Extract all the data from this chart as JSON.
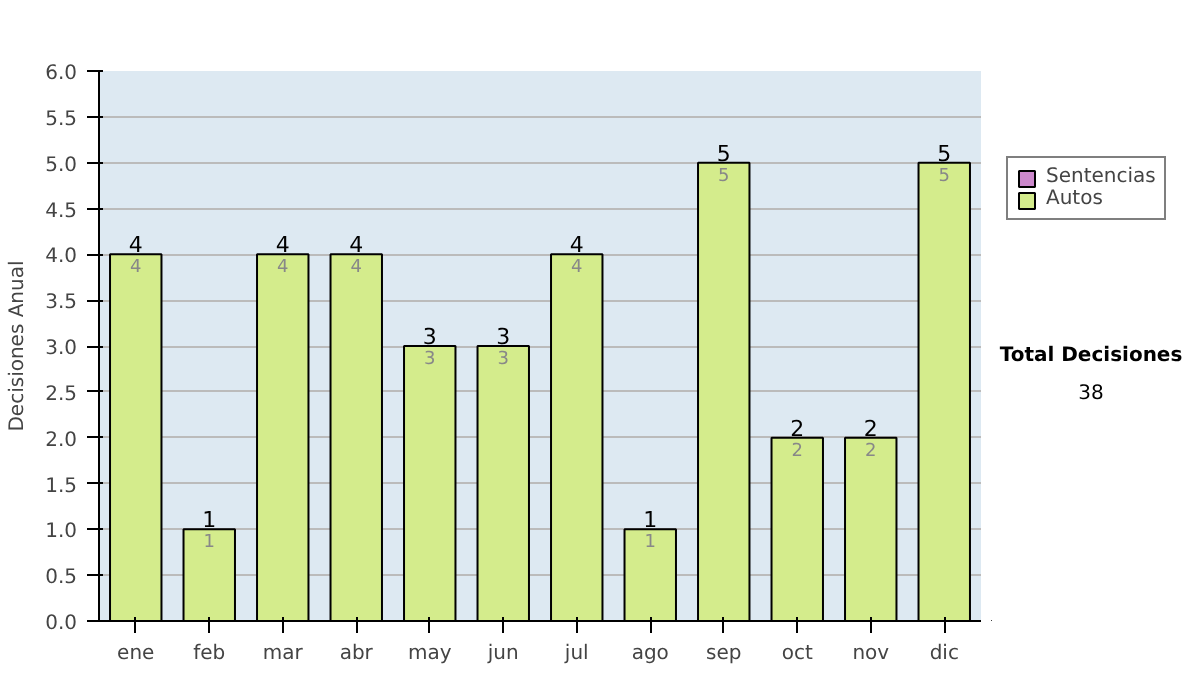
{
  "chart_data": {
    "type": "bar",
    "stacked": true,
    "ylabel": "Decisiones Anual",
    "categories": [
      "ene",
      "feb",
      "mar",
      "abr",
      "may",
      "jun",
      "jul",
      "ago",
      "sep",
      "oct",
      "nov",
      "dic"
    ],
    "series": [
      {
        "name": "Sentencias",
        "color": "#cc88cc",
        "values": [
          0,
          0,
          0,
          0,
          0,
          0,
          0,
          0,
          0,
          0,
          0,
          0
        ]
      },
      {
        "name": "Autos",
        "color": "#d4ec8c",
        "values": [
          4,
          1,
          4,
          4,
          3,
          3,
          4,
          1,
          5,
          2,
          2,
          5
        ],
        "value_labels": [
          "4",
          "1",
          "4",
          "4",
          "3",
          "3",
          "4",
          "1",
          "5",
          "2",
          "2",
          "5"
        ]
      }
    ],
    "ylim": [
      0,
      6
    ],
    "yticks": [
      {
        "value": 0,
        "label": "0.0"
      },
      {
        "value": 0.5,
        "label": "0.5"
      },
      {
        "value": 1,
        "label": "1.0"
      },
      {
        "value": 1.5,
        "label": "1.5"
      },
      {
        "value": 2,
        "label": "2.0"
      },
      {
        "value": 2.5,
        "label": "2.5"
      },
      {
        "value": 3,
        "label": "3.0"
      },
      {
        "value": 3.5,
        "label": "3.5"
      },
      {
        "value": 4,
        "label": "4.0"
      },
      {
        "value": 4.5,
        "label": "4.5"
      },
      {
        "value": 5,
        "label": "5.0"
      },
      {
        "value": 5.5,
        "label": "5.5"
      },
      {
        "value": 6,
        "label": "6.0"
      }
    ],
    "grid": "y",
    "legend": "right",
    "totals": [
      "4",
      "1",
      "4",
      "4",
      "3",
      "3",
      "4",
      "1",
      "5",
      "2",
      "2",
      "5"
    ],
    "annotations": [
      "Total Decisiones",
      "38"
    ]
  }
}
